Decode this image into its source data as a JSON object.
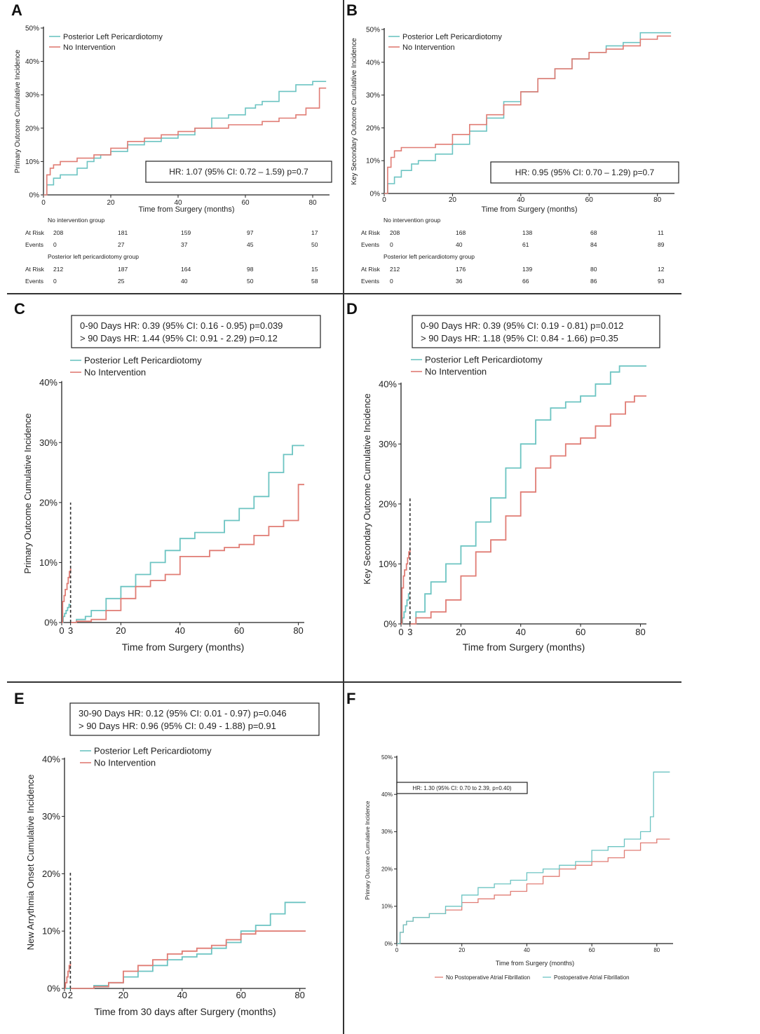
{
  "colors": {
    "teal": "#6cc4c2",
    "red": "#e07c74",
    "axis": "#222222"
  },
  "panels": {
    "A": {
      "letter": "A",
      "ylabel": "Primary Outcome Cumulative Incidence",
      "xlabel": "Time from Surgery (months)",
      "hr_text": "HR: 1.07  (95% CI: 0.72 – 1.59) p=0.7",
      "legend": [
        "Posterior Left Pericardiotomy",
        "No Intervention"
      ],
      "yticks": [
        "0%",
        "10%",
        "20%",
        "30%",
        "40%",
        "50%"
      ],
      "xticks": [
        "0",
        "20",
        "40",
        "60",
        "80"
      ],
      "risk": {
        "group1_title": "No intervention group",
        "group2_title": "Posterior left pericardiotomy group",
        "row_atrisk": "At Risk",
        "row_events": "Events",
        "g1_atrisk": [
          "208",
          "181",
          "159",
          "97",
          "17"
        ],
        "g1_events": [
          "0",
          "27",
          "37",
          "45",
          "50"
        ],
        "g2_atrisk": [
          "212",
          "187",
          "164",
          "98",
          "15"
        ],
        "g2_events": [
          "0",
          "25",
          "40",
          "50",
          "58"
        ]
      }
    },
    "B": {
      "letter": "B",
      "ylabel": "Key Secondary  Outcome Cumulative Incidence",
      "xlabel": "Time from Surgery (months)",
      "hr_text": "HR: 0.95  (95% CI: 0.70 – 1.29) p=0.7",
      "legend": [
        "Posterior Left Pericardiotomy",
        "No Intervention"
      ],
      "yticks": [
        "0%",
        "10%",
        "20%",
        "30%",
        "40%",
        "50%"
      ],
      "xticks": [
        "0",
        "20",
        "40",
        "60",
        "80"
      ],
      "risk": {
        "group1_title": "No intervention group",
        "group2_title": "Posterior left pericardiotomy group",
        "row_atrisk": "At Risk",
        "row_events": "Events",
        "g1_atrisk": [
          "208",
          "168",
          "138",
          "68",
          "11"
        ],
        "g1_events": [
          "0",
          "40",
          "61",
          "84",
          "89"
        ],
        "g2_atrisk": [
          "212",
          "176",
          "139",
          "80",
          "12"
        ],
        "g2_events": [
          "0",
          "36",
          "66",
          "86",
          "93"
        ]
      }
    },
    "C": {
      "letter": "C",
      "ylabel": "Primary Outcome Cumulative Incidence",
      "xlabel": "Time from Surgery (months)",
      "hr_line1": "0-90 Days HR: 0.39 (95% CI: 0.16 - 0.95) p=0.039",
      "hr_line2": "> 90 Days HR: 1.44 (95% CI: 0.91 - 2.29) p=0.12",
      "legend": [
        "Posterior Left Pericardiotomy",
        "No Intervention"
      ],
      "yticks": [
        "0%",
        "10%",
        "20%",
        "30%",
        "40%"
      ],
      "xticks": [
        "0",
        "3",
        "20",
        "40",
        "60",
        "80"
      ]
    },
    "D": {
      "letter": "D",
      "ylabel": "Key Secondary  Outcome Cumulative Incidence",
      "xlabel": "Time from Surgery (months)",
      "hr_line1": "0-90 Days HR: 0.39 (95% CI: 0.19 - 0.81) p=0.012",
      "hr_line2": "> 90 Days HR: 1.18 (95% CI: 0.84 - 1.66) p=0.35",
      "legend": [
        "Posterior Left Pericardiotomy",
        "No Intervention"
      ],
      "yticks": [
        "0%",
        "10%",
        "20%",
        "30%",
        "40%"
      ],
      "xticks": [
        "0",
        "3",
        "20",
        "40",
        "60",
        "80"
      ]
    },
    "E": {
      "letter": "E",
      "ylabel": "New Arrythmia Onset Cumulative Incidence",
      "xlabel": "Time from 30 days after Surgery (months)",
      "hr_line1": "30-90 Days HR: 0.12 (95% CI: 0.01 - 0.97) p=0.046",
      "hr_line2": "> 90 Days HR: 0.96 (95% CI: 0.49 - 1.88) p=0.91",
      "legend": [
        "Posterior Left Pericardiotomy",
        "No Intervention"
      ],
      "yticks": [
        "0%",
        "10%",
        "20%",
        "30%",
        "40%"
      ],
      "xticks": [
        "0",
        "2",
        "20",
        "40",
        "60",
        "80"
      ]
    },
    "F": {
      "letter": "F",
      "ylabel": "Primary Outcome Cumulative Incidence",
      "xlabel": "Time from Surgery (months)",
      "hr_text": "HR: 1.30 (95% CI: 0.70 to 2.39, p=0.40)",
      "legend": [
        "No Postoperative Atrial Fibrillation",
        "Postoperative Atrial Fibrillation"
      ],
      "yticks": [
        "0%",
        "10%",
        "20%",
        "30%",
        "40%",
        "50%"
      ],
      "xticks": [
        "0",
        "20",
        "40",
        "60",
        "80"
      ]
    }
  },
  "chart_data": [
    {
      "panel": "A",
      "type": "line",
      "xlabel": "Time from Surgery (months)",
      "ylabel": "Primary Outcome Cumulative Incidence",
      "xlim": [
        0,
        85
      ],
      "ylim": [
        0,
        50
      ],
      "series": [
        {
          "name": "Posterior Left Pericardiotomy",
          "color": "teal",
          "x": [
            0,
            1,
            3,
            5,
            8,
            10,
            13,
            15,
            17,
            20,
            25,
            30,
            35,
            40,
            45,
            50,
            55,
            60,
            63,
            65,
            70,
            75,
            80,
            84
          ],
          "y": [
            0,
            3,
            5,
            6,
            6,
            8,
            10,
            11,
            12,
            13,
            15,
            16,
            17,
            18,
            20,
            23,
            24,
            26,
            27,
            28,
            31,
            33,
            34,
            34
          ]
        },
        {
          "name": "No Intervention",
          "color": "red",
          "x": [
            0,
            1,
            2,
            3,
            5,
            10,
            15,
            20,
            25,
            30,
            35,
            40,
            45,
            50,
            55,
            60,
            65,
            70,
            75,
            78,
            80,
            82,
            84
          ],
          "y": [
            0,
            6,
            8,
            9,
            10,
            11,
            12,
            14,
            16,
            17,
            18,
            19,
            20,
            20,
            21,
            21,
            22,
            23,
            24,
            26,
            26,
            32,
            32
          ]
        }
      ]
    },
    {
      "panel": "B",
      "type": "line",
      "xlabel": "Time from Surgery (months)",
      "ylabel": "Key Secondary  Outcome Cumulative Incidence",
      "xlim": [
        0,
        85
      ],
      "ylim": [
        0,
        50
      ],
      "series": [
        {
          "name": "Posterior Left Pericardiotomy",
          "color": "teal",
          "x": [
            0,
            1,
            3,
            5,
            8,
            10,
            15,
            20,
            25,
            30,
            35,
            40,
            45,
            50,
            55,
            60,
            65,
            70,
            75,
            80,
            84
          ],
          "y": [
            0,
            3,
            5,
            7,
            9,
            10,
            12,
            15,
            19,
            23,
            28,
            31,
            35,
            38,
            41,
            43,
            45,
            46,
            49,
            49,
            49
          ]
        },
        {
          "name": "No Intervention",
          "color": "red",
          "x": [
            0,
            1,
            2,
            3,
            5,
            10,
            15,
            20,
            25,
            30,
            35,
            40,
            45,
            50,
            55,
            60,
            65,
            70,
            75,
            80,
            84
          ],
          "y": [
            0,
            8,
            11,
            13,
            14,
            14,
            15,
            18,
            21,
            24,
            27,
            31,
            35,
            38,
            41,
            43,
            44,
            45,
            47,
            48,
            48
          ]
        }
      ]
    },
    {
      "panel": "C",
      "type": "line",
      "xlabel": "Time from Surgery (months)",
      "ylabel": "Primary Outcome Cumulative Incidence",
      "xlim": [
        0,
        82
      ],
      "ylim": [
        0,
        42
      ],
      "series": [
        {
          "name": "Posterior Left Pericardiotomy",
          "color": "teal",
          "x": [
            0,
            0.5,
            1,
            1.5,
            2,
            2.5,
            3,
            3.1,
            5,
            8,
            10,
            15,
            20,
            25,
            30,
            35,
            40,
            45,
            50,
            55,
            60,
            65,
            70,
            75,
            78,
            82
          ],
          "y": [
            0,
            1,
            1.5,
            2,
            2.5,
            3,
            3,
            0,
            0.5,
            1,
            2,
            4,
            6,
            8,
            10,
            12,
            14,
            15,
            15,
            17,
            19,
            21,
            25,
            28,
            29.5,
            29.5
          ]
        },
        {
          "name": "No Intervention",
          "color": "red",
          "x": [
            0,
            0.3,
            0.8,
            1.2,
            1.8,
            2.2,
            2.6,
            3,
            3.1,
            5,
            10,
            15,
            20,
            25,
            30,
            35,
            40,
            45,
            50,
            55,
            60,
            65,
            70,
            75,
            78,
            80,
            82
          ],
          "y": [
            0,
            3.5,
            4.5,
            5.5,
            6.5,
            7.5,
            8.5,
            9,
            0,
            0.2,
            0.5,
            2,
            4,
            6,
            7,
            8,
            11,
            11,
            12,
            12.5,
            13,
            14.5,
            16,
            17,
            17,
            23,
            23
          ]
        }
      ]
    },
    {
      "panel": "D",
      "type": "line",
      "xlabel": "Time from Surgery (months)",
      "ylabel": "Key Secondary  Outcome Cumulative Incidence",
      "xlim": [
        0,
        82
      ],
      "ylim": [
        0,
        44
      ],
      "series": [
        {
          "name": "Posterior Left Pericardiotomy",
          "color": "teal",
          "x": [
            0,
            0.5,
            1,
            1.5,
            2,
            2.5,
            3,
            3.1,
            5,
            8,
            10,
            15,
            20,
            25,
            30,
            35,
            40,
            45,
            50,
            55,
            60,
            65,
            70,
            73,
            78,
            82
          ],
          "y": [
            0,
            1,
            2,
            3,
            4,
            5,
            5,
            0,
            2,
            5,
            7,
            10,
            13,
            17,
            21,
            26,
            30,
            34,
            36,
            37,
            38,
            40,
            42,
            43,
            43,
            43
          ]
        },
        {
          "name": "No Intervention",
          "color": "red",
          "x": [
            0,
            0.3,
            0.8,
            1.2,
            1.8,
            2.2,
            2.6,
            3,
            3.1,
            5,
            10,
            15,
            20,
            25,
            30,
            35,
            40,
            45,
            50,
            55,
            60,
            65,
            70,
            75,
            78,
            82
          ],
          "y": [
            0,
            6,
            8,
            9,
            10,
            11,
            12,
            12.5,
            0,
            1,
            2,
            4,
            8,
            12,
            14,
            18,
            22,
            26,
            28,
            30,
            31,
            33,
            35,
            37,
            38,
            38
          ]
        }
      ]
    },
    {
      "panel": "E",
      "type": "line",
      "xlabel": "Time from 30 days after Surgery (months)",
      "ylabel": "New Arrythmia Onset Cumulative Incidence",
      "xlim": [
        0,
        82
      ],
      "ylim": [
        0,
        44
      ],
      "series": [
        {
          "name": "Posterior Left Pericardiotomy",
          "color": "teal",
          "x": [
            0,
            2,
            2.1,
            10,
            15,
            20,
            25,
            30,
            35,
            40,
            45,
            50,
            55,
            60,
            65,
            70,
            75,
            80,
            82
          ],
          "y": [
            0,
            0,
            0,
            0.5,
            1,
            2,
            3,
            4,
            5,
            5.5,
            6,
            7,
            8,
            10,
            11,
            13,
            15,
            15,
            15
          ]
        },
        {
          "name": "No Intervention",
          "color": "red",
          "x": [
            0,
            0.3,
            0.8,
            1.2,
            1.6,
            2,
            2.1,
            10,
            15,
            20,
            25,
            30,
            35,
            40,
            45,
            50,
            55,
            60,
            65,
            70,
            75,
            80,
            82
          ],
          "y": [
            0,
            1,
            2,
            3,
            4,
            4.5,
            0,
            0.3,
            1,
            3,
            4,
            5,
            6,
            6.5,
            7,
            7.5,
            8.5,
            9.5,
            10,
            10,
            10,
            10,
            10
          ]
        }
      ]
    },
    {
      "panel": "F",
      "type": "line",
      "xlabel": "Time from Surgery (months)",
      "ylabel": "Primary Outcome Cumulative Incidence",
      "xlim": [
        0,
        85
      ],
      "ylim": [
        0,
        50
      ],
      "series": [
        {
          "name": "No Postoperative Atrial Fibrillation",
          "color": "red",
          "x": [
            0,
            1,
            2,
            3,
            5,
            10,
            15,
            20,
            25,
            30,
            35,
            40,
            45,
            50,
            55,
            60,
            65,
            70,
            75,
            80,
            84
          ],
          "y": [
            0,
            3,
            5,
            6,
            7,
            8,
            9,
            11,
            12,
            13,
            14,
            16,
            18,
            20,
            21,
            22,
            23,
            25,
            27,
            28,
            28
          ]
        },
        {
          "name": "Postoperative Atrial Fibrillation",
          "color": "teal",
          "x": [
            0,
            1,
            2,
            3,
            5,
            10,
            15,
            20,
            25,
            30,
            35,
            40,
            45,
            50,
            55,
            60,
            65,
            70,
            75,
            78,
            79,
            80,
            84
          ],
          "y": [
            0,
            3,
            5,
            6,
            7,
            8,
            10,
            13,
            15,
            16,
            17,
            19,
            20,
            21,
            22,
            25,
            26,
            28,
            30,
            34,
            46,
            46,
            46
          ]
        }
      ]
    }
  ]
}
